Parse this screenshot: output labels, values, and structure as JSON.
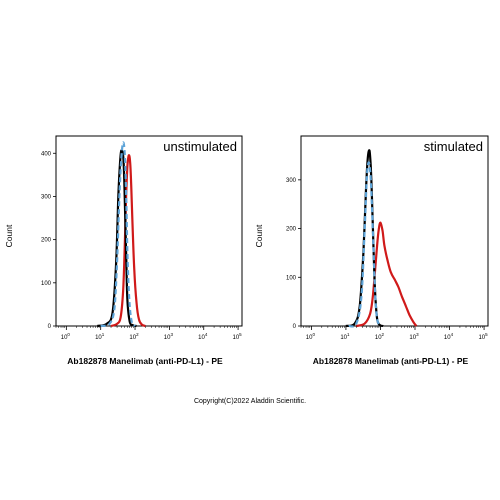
{
  "chart_data": [
    {
      "type": "line",
      "title": "unstimulated",
      "xlabel": "Ab182878 Manelimab (anti-PD-L1) - PE",
      "ylabel": "Count",
      "x_scale": "log",
      "xlim": [
        0.5,
        130000
      ],
      "x_ticks": [
        "0",
        "1",
        "2",
        "3",
        "4",
        "5"
      ],
      "ylim": [
        0,
        440
      ],
      "y_ticks": [
        0,
        100,
        200,
        300,
        400
      ],
      "series": [
        {
          "color": "#000000",
          "style": "solid",
          "x": [
            8,
            15,
            22,
            28,
            33,
            38,
            42,
            46,
            50,
            55,
            60,
            70,
            85,
            110
          ],
          "y": [
            0,
            5,
            30,
            140,
            310,
            395,
            405,
            385,
            300,
            170,
            60,
            10,
            2,
            0
          ]
        },
        {
          "color": "#5ea4d8",
          "style": "dashed",
          "x": [
            10,
            18,
            25,
            30,
            35,
            40,
            45,
            50,
            55,
            60,
            68,
            80,
            100
          ],
          "y": [
            0,
            5,
            40,
            150,
            300,
            390,
            425,
            400,
            310,
            170,
            60,
            10,
            0
          ]
        },
        {
          "color": "#d01a1a",
          "style": "solid",
          "x": [
            20,
            30,
            38,
            45,
            50,
            55,
            60,
            66,
            72,
            78,
            85,
            95,
            110,
            130,
            160,
            200
          ],
          "y": [
            0,
            5,
            20,
            80,
            180,
            300,
            370,
            395,
            380,
            320,
            230,
            130,
            55,
            15,
            3,
            0
          ]
        }
      ]
    },
    {
      "type": "line",
      "title": "stimulated",
      "xlabel": "Ab182878 Manelimab (anti-PD-L1) - PE",
      "ylabel": "Count",
      "x_scale": "log",
      "xlim": [
        0.5,
        130000
      ],
      "x_ticks": [
        "0",
        "1",
        "2",
        "3",
        "4",
        "5"
      ],
      "ylim": [
        0,
        390
      ],
      "y_ticks": [
        0,
        100,
        200,
        300
      ],
      "series": [
        {
          "color": "#000000",
          "style": "solid",
          "x": [
            10,
            18,
            25,
            32,
            38,
            43,
            48,
            52,
            57,
            63,
            70,
            80,
            95,
            120
          ],
          "y": [
            0,
            5,
            40,
            150,
            280,
            345,
            360,
            330,
            260,
            160,
            70,
            15,
            2,
            0
          ]
        },
        {
          "color": "#5ea4d8",
          "style": "dashed",
          "x": [
            12,
            20,
            28,
            35,
            40,
            45,
            50,
            55,
            62,
            70,
            80,
            100
          ],
          "y": [
            0,
            5,
            60,
            200,
            300,
            335,
            320,
            270,
            170,
            70,
            15,
            0
          ]
        },
        {
          "color": "#d01a1a",
          "style": "solid",
          "x": [
            20,
            35,
            50,
            60,
            70,
            80,
            90,
            100,
            115,
            130,
            160,
            200,
            260,
            330,
            420,
            550,
            700,
            900,
            1100
          ],
          "y": [
            0,
            5,
            25,
            60,
            115,
            165,
            200,
            212,
            195,
            165,
            135,
            110,
            95,
            80,
            60,
            40,
            22,
            8,
            0
          ]
        }
      ]
    }
  ],
  "copyright": "Copyright(C)2022 Aladdin Scientific."
}
